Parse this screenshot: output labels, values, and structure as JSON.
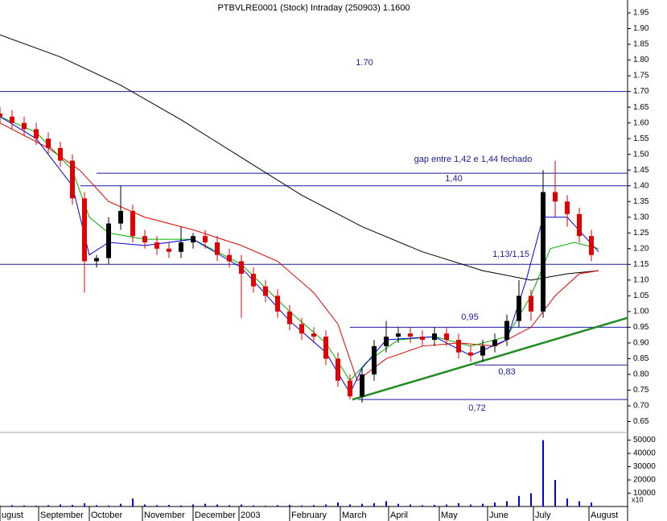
{
  "chart_data": {
    "type": "candlestick",
    "title": "PTBVLRE0001 (Stock) Intraday (250903) 1.1600",
    "x": [
      0,
      5,
      10,
      15,
      20,
      25,
      30,
      35,
      40,
      45,
      50,
      55,
      60,
      65,
      70,
      75,
      80,
      85,
      90,
      95,
      100,
      105,
      110,
      115,
      120,
      125,
      130,
      135,
      140,
      145,
      150,
      155,
      160,
      165,
      170,
      175,
      180,
      185,
      190,
      195,
      200,
      205,
      210,
      215,
      220,
      225,
      230,
      235,
      240,
      245
    ],
    "open": [
      1.63,
      1.62,
      1.6,
      1.58,
      1.55,
      1.52,
      1.48,
      1.36,
      1.16,
      1.17,
      1.28,
      1.32,
      1.24,
      1.22,
      1.2,
      1.19,
      1.22,
      1.24,
      1.22,
      1.18,
      1.16,
      1.12,
      1.08,
      1.05,
      1.0,
      0.96,
      0.93,
      0.92,
      0.85,
      0.78,
      0.73,
      0.8,
      0.89,
      0.92,
      0.93,
      0.92,
      0.91,
      0.93,
      0.91,
      0.87,
      0.86,
      0.89,
      0.91,
      0.97,
      1.05,
      1.0,
      1.38,
      1.35,
      1.31,
      1.24
    ],
    "high": [
      1.65,
      1.64,
      1.62,
      1.6,
      1.57,
      1.54,
      1.5,
      1.38,
      1.18,
      1.3,
      1.4,
      1.34,
      1.26,
      1.24,
      1.22,
      1.27,
      1.25,
      1.26,
      1.24,
      1.2,
      1.18,
      1.14,
      1.1,
      1.07,
      1.02,
      0.98,
      0.95,
      0.94,
      0.87,
      0.8,
      0.82,
      0.91,
      0.97,
      0.95,
      0.95,
      0.94,
      0.95,
      0.95,
      0.93,
      0.89,
      0.91,
      0.93,
      0.99,
      1.1,
      1.07,
      1.45,
      1.48,
      1.37,
      1.33,
      1.26
    ],
    "low": [
      1.6,
      1.58,
      1.56,
      1.53,
      1.5,
      1.46,
      1.34,
      1.06,
      1.14,
      1.15,
      1.26,
      1.22,
      1.2,
      1.18,
      1.17,
      1.17,
      1.2,
      1.2,
      1.16,
      1.14,
      0.98,
      1.06,
      1.03,
      0.98,
      0.94,
      0.91,
      0.9,
      0.83,
      0.76,
      0.72,
      0.71,
      0.78,
      0.87,
      0.9,
      0.9,
      0.89,
      0.89,
      0.89,
      0.85,
      0.84,
      0.84,
      0.87,
      0.89,
      0.95,
      0.97,
      0.98,
      1.3,
      1.27,
      1.22,
      1.16
    ],
    "close": [
      1.62,
      1.6,
      1.58,
      1.55,
      1.52,
      1.48,
      1.36,
      1.16,
      1.17,
      1.28,
      1.32,
      1.24,
      1.22,
      1.2,
      1.19,
      1.22,
      1.24,
      1.22,
      1.18,
      1.16,
      1.12,
      1.08,
      1.05,
      1.0,
      0.96,
      0.93,
      0.92,
      0.85,
      0.78,
      0.73,
      0.8,
      0.89,
      0.92,
      0.93,
      0.92,
      0.91,
      0.93,
      0.91,
      0.87,
      0.86,
      0.89,
      0.91,
      0.97,
      1.05,
      1.0,
      1.38,
      1.35,
      1.31,
      1.24,
      1.18
    ],
    "up_color": "#000000",
    "down_color": "#e00000",
    "moving_averages": [
      {
        "color": "#000000",
        "x": [
          0,
          25,
          50,
          75,
          100,
          125,
          150,
          175,
          200,
          220,
          235,
          248
        ],
        "values": [
          1.88,
          1.81,
          1.72,
          1.61,
          1.49,
          1.37,
          1.27,
          1.19,
          1.13,
          1.1,
          1.12,
          1.13
        ]
      },
      {
        "color": "#e00000",
        "x": [
          0,
          20,
          33,
          45,
          60,
          80,
          100,
          115,
          130,
          140,
          148,
          160,
          175,
          190,
          205,
          220,
          230,
          240,
          248
        ],
        "values": [
          1.6,
          1.52,
          1.45,
          1.35,
          1.3,
          1.26,
          1.21,
          1.16,
          1.06,
          0.96,
          0.78,
          0.85,
          0.89,
          0.9,
          0.89,
          0.95,
          1.05,
          1.12,
          1.13
        ]
      },
      {
        "color": "#00b000",
        "x": [
          0,
          15,
          30,
          37,
          45,
          60,
          80,
          100,
          120,
          135,
          145,
          152,
          165,
          180,
          195,
          210,
          220,
          228,
          238,
          248
        ],
        "values": [
          1.62,
          1.57,
          1.45,
          1.3,
          1.25,
          1.23,
          1.23,
          1.15,
          1.0,
          0.9,
          0.78,
          0.84,
          0.91,
          0.92,
          0.89,
          0.92,
          1.05,
          1.2,
          1.22,
          1.2
        ]
      },
      {
        "color": "#0000e0",
        "x": [
          0,
          15,
          30,
          37,
          45,
          60,
          80,
          100,
          120,
          135,
          145,
          150,
          160,
          180,
          195,
          210,
          218,
          225,
          235,
          248
        ],
        "values": [
          1.62,
          1.55,
          1.4,
          1.18,
          1.22,
          1.21,
          1.23,
          1.14,
          0.97,
          0.87,
          0.74,
          0.82,
          0.91,
          0.92,
          0.86,
          0.91,
          1.1,
          1.3,
          1.3,
          1.19
        ]
      }
    ],
    "levels": [
      {
        "value": 1.7,
        "label": "1.70"
      },
      {
        "value": 1.44,
        "label": "gap entre 1,42 e 1,44 fechado"
      },
      {
        "value": 1.4,
        "label": "1,40"
      },
      {
        "value": 1.15,
        "label": "1,13/1,15"
      },
      {
        "value": 0.95,
        "label": "0,95"
      },
      {
        "value": 0.83,
        "label": "0,83"
      },
      {
        "value": 0.72,
        "label": "0,72"
      }
    ],
    "trendline": {
      "color": "#228b22",
      "x": [
        146,
        260
      ],
      "values": [
        0.72,
        0.98
      ]
    },
    "xlim": [
      0,
      260
    ],
    "xticks": [
      {
        "value": 0,
        "label": "ugust"
      },
      {
        "value": 16,
        "label": "September"
      },
      {
        "value": 37,
        "label": "October"
      },
      {
        "value": 59,
        "label": "November"
      },
      {
        "value": 80,
        "label": "December"
      },
      {
        "value": 99,
        "label": "2003"
      },
      {
        "value": 120,
        "label": "February"
      },
      {
        "value": 141,
        "label": "March"
      },
      {
        "value": 161,
        "label": "April"
      },
      {
        "value": 182,
        "label": "May"
      },
      {
        "value": 202,
        "label": "June"
      },
      {
        "value": 221,
        "label": "July"
      },
      {
        "value": 244,
        "label": "August"
      }
    ],
    "ylim": [
      0.65,
      1.95
    ],
    "yticks": [
      {
        "value": 0.65,
        "label": "0.65"
      },
      {
        "value": 0.7,
        "label": "0.70"
      },
      {
        "value": 0.75,
        "label": "0.75"
      },
      {
        "value": 0.8,
        "label": "0.80"
      },
      {
        "value": 0.85,
        "label": "0.85"
      },
      {
        "value": 0.9,
        "label": "0.90"
      },
      {
        "value": 0.95,
        "label": "0.95"
      },
      {
        "value": 1.0,
        "label": "1.00"
      },
      {
        "value": 1.05,
        "label": "1.05"
      },
      {
        "value": 1.1,
        "label": "1.10"
      },
      {
        "value": 1.15,
        "label": "1.15"
      },
      {
        "value": 1.2,
        "label": "1.20"
      },
      {
        "value": 1.25,
        "label": "1.25"
      },
      {
        "value": 1.3,
        "label": "1.30"
      },
      {
        "value": 1.35,
        "label": "1.35"
      },
      {
        "value": 1.4,
        "label": "1.40"
      },
      {
        "value": 1.45,
        "label": "1.45"
      },
      {
        "value": 1.5,
        "label": "1.50"
      },
      {
        "value": 1.55,
        "label": "1.55"
      },
      {
        "value": 1.6,
        "label": "1.60"
      },
      {
        "value": 1.65,
        "label": "1.65"
      },
      {
        "value": 1.7,
        "label": "1.70"
      },
      {
        "value": 1.75,
        "label": "1.75"
      },
      {
        "value": 1.8,
        "label": "1.80"
      },
      {
        "value": 1.85,
        "label": "1.85"
      },
      {
        "value": 1.9,
        "label": "1.90"
      },
      {
        "value": 1.95,
        "label": "1.95"
      }
    ],
    "volume": [
      500,
      1000,
      800,
      600,
      1000,
      1500,
      1200,
      2500,
      1000,
      800,
      2000,
      6000,
      1500,
      1000,
      1200,
      800,
      1500,
      2000,
      1500,
      1000,
      1500,
      800,
      600,
      1000,
      1200,
      800,
      1000,
      1500,
      3000,
      1500,
      2000,
      2500,
      4000,
      2000,
      1500,
      1000,
      1200,
      1500,
      2500,
      1500,
      2000,
      3000,
      4000,
      8000,
      10000,
      50000,
      20000,
      6000,
      4000,
      3000
    ],
    "volume_color": "#0000e0",
    "volume_ylim": [
      0,
      54000
    ],
    "volume_yticks": [
      10000,
      20000,
      30000,
      40000,
      50000
    ],
    "volume_unit": "x10"
  }
}
